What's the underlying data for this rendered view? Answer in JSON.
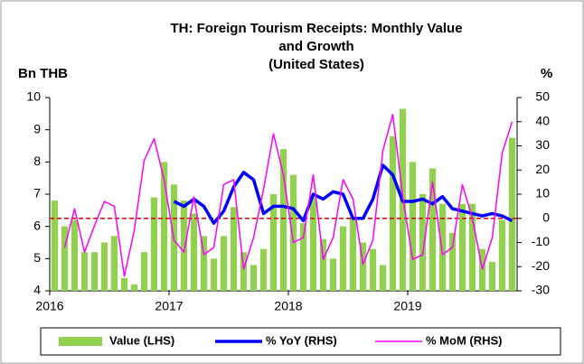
{
  "chart_data": {
    "type": "bar_line",
    "title": [
      "TH: Foreign Tourism Receipts: Monthly Value",
      "and Growth",
      "(United States)"
    ],
    "ylabel": "Bn THB",
    "y2label": "%",
    "categories": [
      null,
      null,
      null,
      null,
      null,
      null,
      null,
      null,
      null,
      null,
      null,
      null,
      null,
      null,
      null,
      null,
      null,
      null,
      null,
      null,
      null,
      null,
      null,
      null,
      null,
      null,
      null,
      null,
      null,
      null,
      null,
      null,
      null,
      null,
      null,
      null,
      null,
      null,
      null,
      null,
      null,
      null,
      null,
      null,
      null,
      null,
      null
    ],
    "xticks": [
      {
        "value": 0,
        "label": "2016"
      },
      {
        "value": 12,
        "label": "2017"
      },
      {
        "value": 24,
        "label": "2018"
      },
      {
        "value": 36,
        "label": "2019"
      }
    ],
    "ylim": [
      4,
      10
    ],
    "yticks": [
      4,
      5,
      6,
      7,
      8,
      9,
      10
    ],
    "y2lim": [
      -30,
      50
    ],
    "y2ticks": [
      -30,
      -20,
      -10,
      0,
      10,
      20,
      30,
      40,
      50
    ],
    "hline": {
      "value": 6.25,
      "color": "#e00000"
    },
    "series": [
      {
        "name": "Value (LHS)",
        "kind": "bar",
        "color": "#92d050",
        "values": [
          6.8,
          6.0,
          6.2,
          5.2,
          5.2,
          5.5,
          5.7,
          4.4,
          4.2,
          5.2,
          6.9,
          8.0,
          7.3,
          6.8,
          6.4,
          5.7,
          5.0,
          5.7,
          6.6,
          5.2,
          4.8,
          5.3,
          7.0,
          8.4,
          7.6,
          6.1,
          6.9,
          5.6,
          5.0,
          6.0,
          6.3,
          5.5,
          5.3,
          4.8,
          8.8,
          9.65,
          8.0,
          7.0,
          7.8,
          6.7,
          5.8,
          6.7,
          6.7,
          5.3,
          4.9,
          6.2,
          8.75
        ]
      },
      {
        "name": "% YoY (RHS)",
        "kind": "line",
        "axis": "y2",
        "color": "#0000ff",
        "width": 3.5,
        "values": [
          null,
          null,
          null,
          null,
          null,
          null,
          null,
          null,
          null,
          null,
          null,
          null,
          7,
          5,
          8,
          5,
          -2,
          3,
          13,
          19,
          16,
          2,
          5,
          5,
          4,
          -1,
          10,
          8,
          11,
          10,
          0,
          0,
          8,
          22,
          18,
          7,
          7,
          8,
          6,
          9,
          4,
          3,
          2,
          1,
          2,
          1,
          -1
        ]
      },
      {
        "name": "% MoM (RHS)",
        "kind": "line",
        "axis": "y2",
        "color": "#ff00ff",
        "width": 1.5,
        "values": [
          null,
          -12,
          4,
          -14,
          -3,
          7,
          5,
          -24,
          -5,
          24,
          33,
          16,
          -9,
          -14,
          9,
          -15,
          -12,
          14,
          16,
          -21,
          -8,
          12,
          35,
          18,
          -10,
          -8,
          18,
          -17,
          -8,
          16,
          8,
          -19,
          -9,
          28,
          43,
          9,
          -17,
          -15,
          15,
          -15,
          -12,
          14,
          0,
          -21,
          -8,
          27,
          40
        ]
      }
    ]
  }
}
